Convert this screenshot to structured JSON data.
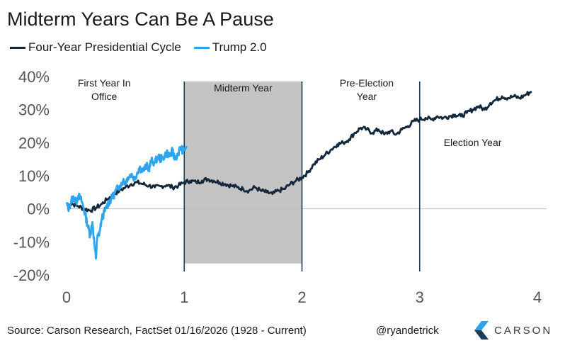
{
  "colors": {
    "cycle": "#14283c",
    "trump": "#2ea3ee",
    "shade": "#c4c4c4",
    "axis_text": "#555555",
    "zero_line": "#bdbdbd",
    "logo_blue": "#2ea3ee",
    "logo_dark": "#1f3b5a"
  },
  "title": "Midterm Years Can Be A Pause",
  "footer": {
    "source": "Source: Carson Research, FactSet 01/16/2026   (1928 - Current)",
    "handle": "@ryandetrick",
    "logo_text": "CARSON",
    "logo_icon": "carson-chevron-icon"
  },
  "chart_data": {
    "type": "line",
    "title": "Midterm Years Can Be A Pause",
    "xlabel": "",
    "ylabel": "",
    "xlim": [
      0,
      4
    ],
    "ylim": [
      -20,
      40
    ],
    "x_ticks": [
      0,
      1,
      2,
      3,
      4
    ],
    "x_tick_labels": [
      "0",
      "1",
      "2",
      "3",
      "4"
    ],
    "y_ticks": [
      40,
      30,
      20,
      10,
      0,
      -10,
      -20
    ],
    "y_tick_labels": [
      "40%",
      "30%",
      "20%",
      "10%",
      "0%",
      "-10%",
      "-20%"
    ],
    "legend_position": "top-left",
    "shaded_region": {
      "x": [
        1,
        2
      ],
      "y": [
        -16.5,
        40
      ],
      "label": "Midterm Year"
    },
    "vertical_lines": [
      1,
      2,
      3
    ],
    "annotations": [
      {
        "text": "First Year In\nOffice",
        "x": 0.32,
        "y": 37
      },
      {
        "text": "Midterm Year",
        "x": 1.5,
        "y": 35.5
      },
      {
        "text": "Pre-Election\nYear",
        "x": 2.55,
        "y": 37
      },
      {
        "text": "Election Year",
        "x": 3.45,
        "y": 19
      }
    ],
    "series": [
      {
        "name": "Four-Year Presidential Cycle",
        "color": "#14283c",
        "x": [
          0,
          0.05,
          0.1,
          0.15,
          0.2,
          0.25,
          0.3,
          0.35,
          0.4,
          0.45,
          0.5,
          0.55,
          0.6,
          0.65,
          0.7,
          0.75,
          0.8,
          0.85,
          0.9,
          0.95,
          1.0,
          1.05,
          1.1,
          1.15,
          1.2,
          1.25,
          1.3,
          1.35,
          1.4,
          1.45,
          1.5,
          1.55,
          1.6,
          1.65,
          1.7,
          1.75,
          1.8,
          1.85,
          1.9,
          1.95,
          2.0,
          2.05,
          2.1,
          2.15,
          2.2,
          2.25,
          2.3,
          2.35,
          2.4,
          2.45,
          2.5,
          2.55,
          2.6,
          2.65,
          2.7,
          2.75,
          2.8,
          2.85,
          2.9,
          2.95,
          3.0,
          3.05,
          3.1,
          3.15,
          3.2,
          3.25,
          3.3,
          3.35,
          3.4,
          3.45,
          3.5,
          3.55,
          3.6,
          3.65,
          3.7,
          3.75,
          3.8,
          3.85,
          3.9,
          3.95
        ],
        "values": [
          1.0,
          1.5,
          0.8,
          0.0,
          -0.5,
          0.3,
          1.5,
          3.0,
          4.5,
          5.5,
          6.5,
          7.5,
          8.0,
          7.5,
          7.0,
          6.5,
          6.8,
          7.2,
          6.5,
          7.0,
          8.0,
          8.5,
          8.0,
          8.5,
          9.0,
          8.5,
          8.0,
          7.5,
          7.0,
          6.5,
          6.0,
          5.5,
          6.5,
          5.5,
          5.0,
          4.5,
          5.5,
          6.0,
          7.5,
          8.5,
          9.5,
          11.0,
          13.5,
          15.0,
          16.5,
          18.0,
          19.5,
          20.0,
          21.0,
          23.0,
          24.5,
          24.0,
          23.0,
          24.0,
          22.5,
          23.5,
          22.5,
          24.0,
          25.0,
          26.5,
          27.0,
          27.5,
          27.0,
          28.0,
          27.5,
          28.0,
          28.5,
          28.0,
          29.0,
          30.0,
          31.0,
          30.0,
          32.0,
          33.0,
          34.0,
          33.5,
          34.0,
          33.5,
          34.5,
          35.5
        ]
      },
      {
        "name": "Trump 2.0",
        "color": "#2ea3ee",
        "x": [
          0.0,
          0.02,
          0.04,
          0.06,
          0.08,
          0.1,
          0.12,
          0.14,
          0.16,
          0.18,
          0.2,
          0.22,
          0.24,
          0.25,
          0.26,
          0.28,
          0.3,
          0.32,
          0.34,
          0.36,
          0.38,
          0.4,
          0.42,
          0.45,
          0.48,
          0.5,
          0.52,
          0.55,
          0.58,
          0.6,
          0.62,
          0.65,
          0.68,
          0.7,
          0.72,
          0.75,
          0.78,
          0.8,
          0.82,
          0.85,
          0.88,
          0.9,
          0.92,
          0.95,
          0.97,
          0.99,
          1.02
        ],
        "values": [
          1.5,
          0.0,
          2.5,
          3.5,
          2.0,
          4.0,
          3.0,
          1.0,
          -2.0,
          -5.0,
          -8.0,
          -4.0,
          -12.0,
          -15.0,
          -9.0,
          -7.0,
          -3.0,
          -1.0,
          0.5,
          2.0,
          3.0,
          4.0,
          5.5,
          7.0,
          8.5,
          8.0,
          9.5,
          10.5,
          9.0,
          11.0,
          12.5,
          11.5,
          13.0,
          12.0,
          14.5,
          14.0,
          16.0,
          15.0,
          15.5,
          17.0,
          16.0,
          17.5,
          15.0,
          17.0,
          18.5,
          17.5,
          19.0
        ]
      }
    ]
  }
}
